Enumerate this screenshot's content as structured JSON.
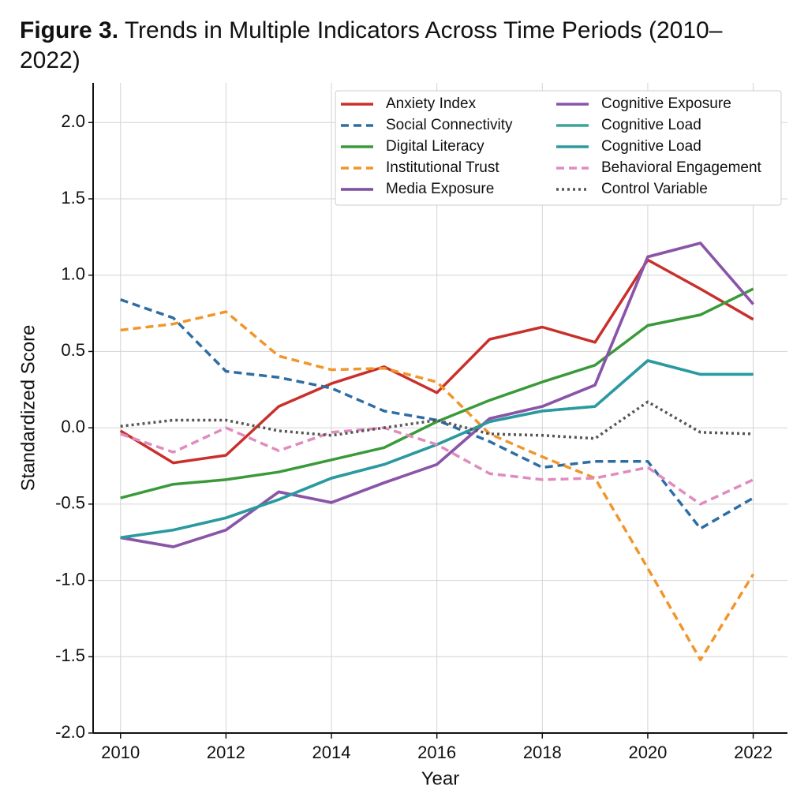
{
  "chart_data": {
    "type": "line",
    "figure_label": "Figure 3.",
    "title": "Trends in Multiple Indicators Across Time Periods (2010–2022)",
    "x_label": "Year",
    "y_label": "Standardized Score",
    "x": [
      2010,
      2011,
      2012,
      2013,
      2014,
      2015,
      2016,
      2017,
      2018,
      2019,
      2020,
      2021,
      2022
    ],
    "xlim": [
      2009.48,
      2022.65
    ],
    "xticks": [
      2010,
      2012,
      2014,
      2016,
      2018,
      2020,
      2022
    ],
    "ylim": [
      -2.0,
      2.26
    ],
    "yticks": [
      {
        "value": -2.0,
        "label": "-2.0"
      },
      -1.5,
      {
        "value": -1.0,
        "label": "-1.0"
      },
      -0.5,
      {
        "value": 0.0,
        "label": "0.0"
      },
      0.5,
      {
        "value": 1.0,
        "label": "1.0"
      },
      1.5,
      {
        "value": 2.0,
        "label": "2.0"
      }
    ],
    "grid": true,
    "legend": "upper right",
    "series": [
      {
        "name": "Anxiety Index",
        "color": "#c9302c",
        "dash": "solid",
        "values": [
          -0.02,
          -0.23,
          -0.18,
          0.14,
          0.29,
          0.4,
          0.23,
          0.58,
          0.66,
          0.56,
          1.1,
          0.91,
          0.71
        ]
      },
      {
        "name": "Social Connectivity",
        "color": "#2e6da4",
        "dash": "dashed",
        "values": [
          0.84,
          0.72,
          0.37,
          0.33,
          0.26,
          0.11,
          0.05,
          -0.09,
          -0.26,
          -0.22,
          -0.22,
          -0.66,
          -0.46
        ]
      },
      {
        "name": "Digital Literacy",
        "color": "#3a9a3a",
        "dash": "solid",
        "values": [
          -0.46,
          -0.37,
          -0.34,
          -0.29,
          -0.21,
          -0.13,
          0.04,
          0.18,
          0.3,
          0.41,
          0.67,
          0.74,
          0.91
        ]
      },
      {
        "name": "Institutional Trust",
        "color": "#f0962a",
        "dash": "dashed",
        "values": [
          0.64,
          0.68,
          0.76,
          0.47,
          0.38,
          0.39,
          0.3,
          -0.04,
          -0.19,
          -0.33,
          -0.92,
          -1.52,
          -0.96
        ]
      },
      {
        "name": "Media Exposure",
        "color": "#7f4f9f",
        "dash": "solid",
        "values": [
          -0.72,
          -0.78,
          -0.67,
          -0.42,
          -0.49,
          -0.36,
          -0.24,
          0.06,
          0.14,
          0.28,
          1.12,
          1.21,
          0.81
        ]
      },
      {
        "name": "Cognitive Exposure",
        "color": "#8a55a8",
        "dash": "solid",
        "values": [
          -0.72,
          -0.78,
          -0.67,
          -0.42,
          -0.49,
          -0.36,
          -0.24,
          0.06,
          0.14,
          0.28,
          1.12,
          1.21,
          0.81
        ]
      },
      {
        "name": "Cognitive Load",
        "color": "#3aa39a",
        "dash": "solid",
        "values": [
          -0.72,
          -0.67,
          -0.59,
          -0.47,
          -0.33,
          -0.24,
          -0.11,
          0.04,
          0.11,
          0.14,
          0.44,
          0.35,
          0.35
        ]
      },
      {
        "name": "Cognitive Load",
        "color": "#2a9aa0",
        "dash": "solid",
        "values": [
          -0.72,
          -0.67,
          -0.59,
          -0.47,
          -0.33,
          -0.24,
          -0.11,
          0.04,
          0.11,
          0.14,
          0.44,
          0.35,
          0.35
        ]
      },
      {
        "name": "Behavioral Engagement",
        "color": "#e08bc0",
        "dash": "dashed",
        "values": [
          -0.04,
          -0.16,
          0.0,
          -0.15,
          -0.03,
          0.0,
          -0.11,
          -0.3,
          -0.34,
          -0.33,
          -0.26,
          -0.5,
          -0.34
        ]
      },
      {
        "name": "Control Variable",
        "color": "#555555",
        "dash": "dotted",
        "values": [
          0.01,
          0.05,
          0.05,
          -0.02,
          -0.05,
          0.0,
          0.05,
          -0.04,
          -0.05,
          -0.07,
          0.17,
          -0.03,
          -0.04
        ]
      }
    ]
  }
}
